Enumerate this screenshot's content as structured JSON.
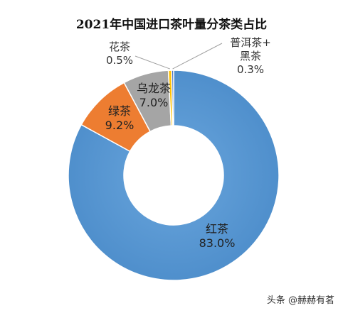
{
  "chart_data": {
    "type": "pie",
    "variant": "donut",
    "title": "2021年中国进口茶叶量分茶类占比",
    "legend": "none",
    "slices": [
      {
        "name": "红茶",
        "value": 83.0,
        "label": "83.0%",
        "color": "#5B9BD5"
      },
      {
        "name": "绿茶",
        "value": 9.2,
        "label": "9.2%",
        "color": "#ED7D31"
      },
      {
        "name": "乌龙茶",
        "value": 7.0,
        "label": "7.0%",
        "color": "#A5A5A5"
      },
      {
        "name": "花茶",
        "value": 0.5,
        "label": "0.5%",
        "color": "#FFC000"
      },
      {
        "name": "普洱茶+黑茶",
        "name_lines": [
          "普洱茶+",
          "黑茶"
        ],
        "value": 0.3,
        "label": "0.3%",
        "color": "#4472C4"
      }
    ]
  },
  "watermark": "头条 @赫赫有茗"
}
